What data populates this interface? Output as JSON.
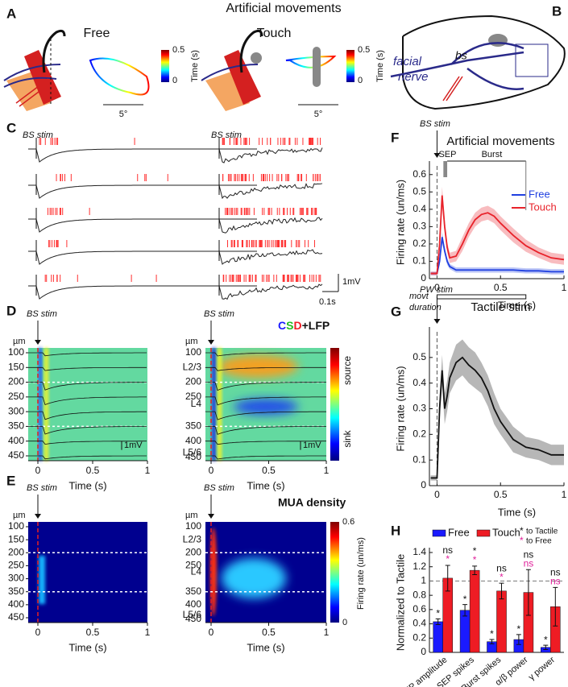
{
  "figure_title": "Artificial movements",
  "panels": [
    "A",
    "B",
    "C",
    "D",
    "E",
    "F",
    "G",
    "H"
  ],
  "panel_a": {
    "free": "Free",
    "touch": "Touch",
    "colorbar_label": "Time (s)",
    "colorbar_max": 0.5,
    "colorbar_min": 0,
    "scale_bar": "5°"
  },
  "panel_b": {
    "nerve_line1": "facial",
    "nerve_line2": "nerve",
    "stim_site": "bs"
  },
  "panel_c": {
    "stim": "BS stim",
    "voltage_scale": "1mV",
    "time_scale": "0.1s"
  },
  "panel_d": {
    "stim": "BS stim",
    "csd_letters": [
      "C",
      "S",
      "D"
    ],
    "csd_suffix": "+LFP",
    "depth_unit": "µm",
    "depths": [
      100,
      150,
      200,
      250,
      300,
      350,
      400,
      450
    ],
    "layers": [
      "L2/3",
      "L4",
      "L5/6"
    ],
    "lfp_scale": "1mV",
    "colorbar_top": "source",
    "colorbar_bottom": "sink",
    "time_ticks": [
      0,
      0.5,
      1
    ],
    "xlabel": "Time (s)"
  },
  "panel_e": {
    "stim": "BS stim",
    "title": "MUA density",
    "depth_unit": "µm",
    "depths": [
      100,
      150,
      200,
      250,
      300,
      350,
      400,
      450
    ],
    "layers": [
      "L2/3",
      "L4",
      "L5/6"
    ],
    "colorbar_ticks": [
      0.6,
      0
    ],
    "colorbar_label": "Firing rate (un/ms)",
    "time_ticks": [
      0,
      0.5,
      1
    ],
    "xlabel": "Time (s)"
  },
  "chart_data": [
    {
      "type": "line",
      "title": "Artificial movements",
      "stim_label": "BS stim",
      "sep_label": "SEP",
      "burst_label": "Burst",
      "duration_label": [
        "movt",
        "duration"
      ],
      "xlabel": "Time (s)",
      "ylabel": "Firing rate (un/ms)",
      "legend": "upper right",
      "x": [
        -0.05,
        -0.02,
        0,
        0.02,
        0.04,
        0.06,
        0.08,
        0.1,
        0.15,
        0.2,
        0.25,
        0.3,
        0.35,
        0.4,
        0.45,
        0.5,
        0.6,
        0.7,
        0.8,
        0.9,
        1.0
      ],
      "series": [
        {
          "name": "Free",
          "color": "#1f3fe0",
          "values": [
            0.03,
            0.03,
            0.03,
            0.1,
            0.24,
            0.16,
            0.1,
            0.07,
            0.05,
            0.05,
            0.05,
            0.05,
            0.05,
            0.05,
            0.05,
            0.05,
            0.05,
            0.045,
            0.045,
            0.04,
            0.04
          ],
          "errors": [
            0.01,
            0.01,
            0.01,
            0.02,
            0.03,
            0.02,
            0.02,
            0.015,
            0.015,
            0.015,
            0.015,
            0.015,
            0.015,
            0.015,
            0.015,
            0.015,
            0.015,
            0.015,
            0.015,
            0.015,
            0.015
          ]
        },
        {
          "name": "Touch",
          "color": "#e8222a",
          "values": [
            0.03,
            0.03,
            0.03,
            0.2,
            0.48,
            0.3,
            0.18,
            0.12,
            0.13,
            0.2,
            0.28,
            0.34,
            0.37,
            0.38,
            0.36,
            0.32,
            0.25,
            0.19,
            0.15,
            0.12,
            0.11
          ],
          "errors": [
            0.01,
            0.01,
            0.01,
            0.04,
            0.05,
            0.04,
            0.03,
            0.03,
            0.03,
            0.04,
            0.04,
            0.04,
            0.04,
            0.04,
            0.04,
            0.04,
            0.04,
            0.035,
            0.03,
            0.03,
            0.03
          ]
        }
      ],
      "xlim": [
        -0.06,
        1
      ],
      "xticks": [
        0,
        0.5,
        1
      ],
      "ylim": [
        0,
        0.65
      ],
      "yticks": [
        0,
        0.1,
        0.2,
        0.3,
        0.4,
        0.5,
        0.6
      ]
    },
    {
      "type": "line",
      "title": "Tactile stim",
      "stim_label": "PW stim",
      "xlabel": "Time (s)",
      "ylabel": "Firing rate (un/ms)",
      "x": [
        -0.05,
        -0.02,
        0,
        0.02,
        0.04,
        0.06,
        0.08,
        0.1,
        0.15,
        0.2,
        0.25,
        0.3,
        0.35,
        0.4,
        0.45,
        0.5,
        0.6,
        0.7,
        0.8,
        0.9,
        1.0
      ],
      "color": "#111111",
      "values": [
        0.03,
        0.03,
        0.03,
        0.3,
        0.45,
        0.3,
        0.35,
        0.42,
        0.48,
        0.5,
        0.47,
        0.45,
        0.42,
        0.37,
        0.3,
        0.25,
        0.18,
        0.15,
        0.14,
        0.12,
        0.12
      ],
      "errors": [
        0.01,
        0.01,
        0.01,
        0.05,
        0.06,
        0.06,
        0.06,
        0.06,
        0.07,
        0.07,
        0.07,
        0.07,
        0.06,
        0.06,
        0.06,
        0.05,
        0.05,
        0.04,
        0.04,
        0.04,
        0.04
      ],
      "xlim": [
        -0.06,
        1
      ],
      "xticks": [
        0,
        0.5,
        1
      ],
      "ylim": [
        0,
        0.6
      ],
      "yticks": [
        0,
        0.1,
        0.2,
        0.3,
        0.4,
        0.5
      ]
    },
    {
      "type": "bar",
      "ylabel": "Normalized to Tactile",
      "legend": "upper left",
      "categories": [
        "SEP amplitude",
        "SEP spikes",
        "Burst spikes",
        "α/β power",
        "γ power"
      ],
      "series": [
        {
          "name": "Free",
          "color": "#1a1aff",
          "values": [
            0.43,
            0.59,
            0.15,
            0.18,
            0.07
          ],
          "errors": [
            0.04,
            0.08,
            0.03,
            0.07,
            0.03
          ],
          "sig": [
            "*",
            "*",
            "*",
            "*",
            "*"
          ]
        },
        {
          "name": "Touch",
          "color": "#ee1c24",
          "values": [
            1.04,
            1.15,
            0.86,
            0.84,
            0.64
          ],
          "errors": [
            0.18,
            0.06,
            0.11,
            0.32,
            0.27
          ],
          "sig_tactile": [
            "ns",
            "*",
            "ns",
            "ns",
            "ns"
          ],
          "sig_free": [
            "*",
            "*",
            "*",
            "ns",
            "ns"
          ]
        }
      ],
      "sig_legend": {
        "mark": "*",
        "tactile": "to Tactile",
        "free": "to Free"
      },
      "reference_line": 1,
      "ylim": [
        0,
        1.4
      ],
      "yticks": [
        0,
        0.2,
        0.4,
        0.6,
        0.8,
        1,
        1.2,
        1.4
      ]
    }
  ]
}
